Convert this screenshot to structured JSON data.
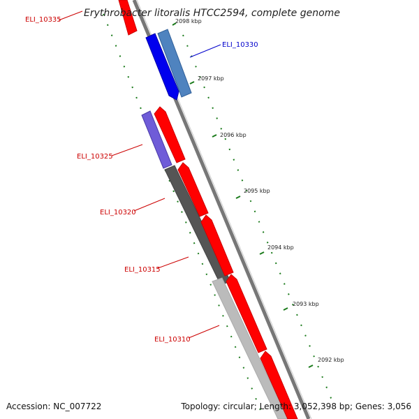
{
  "title": "Erythrobacter litoralis HTCC2594, complete genome",
  "accession": "Accession: NC_007722",
  "topology": "Topology: circular; Length: 3,052,398 bp; Genes: 3,056",
  "colors": {
    "forward_cds": "#ff0000",
    "reverse_cds": "#0000ee",
    "reverse_cds_light": "#4f83bf",
    "reverse_cds_purple": "#6f5cd8",
    "gc_dark": "#555555",
    "gc_light": "#bbbbbb",
    "backbone": "#777777",
    "tick": "#1a7a1a",
    "label_forward": "#cc0000",
    "label_reverse": "#0000cc"
  },
  "scale_ticks": [
    {
      "label": "2098 kbp"
    },
    {
      "label": "2097 kbp"
    },
    {
      "label": "2096 kbp"
    },
    {
      "label": "2095 kbp"
    },
    {
      "label": "2094 kbp"
    },
    {
      "label": "2093 kbp"
    },
    {
      "label": "2092 kbp"
    }
  ],
  "gene_labels": [
    {
      "name": "ELI_10335",
      "strand": "forward"
    },
    {
      "name": "ELI_10330",
      "strand": "reverse"
    },
    {
      "name": "ELI_10325",
      "strand": "forward"
    },
    {
      "name": "ELI_10320",
      "strand": "forward"
    },
    {
      "name": "ELI_10315",
      "strand": "forward"
    },
    {
      "name": "ELI_10310",
      "strand": "forward"
    }
  ]
}
